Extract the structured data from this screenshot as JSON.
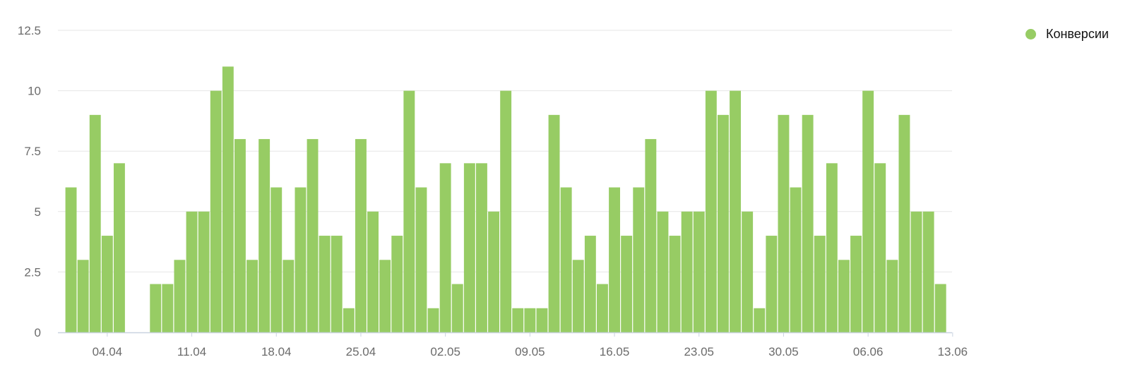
{
  "chart_data": {
    "type": "bar",
    "ylim": [
      0,
      12.5
    ],
    "y_ticks": [
      "0",
      "2.5",
      "5",
      "7.5",
      "10",
      "12.5"
    ],
    "x_ticks": [
      "04.04",
      "11.04",
      "18.04",
      "25.04",
      "02.05",
      "09.05",
      "16.05",
      "23.05",
      "30.05",
      "06.06",
      "13.06"
    ],
    "series": [
      {
        "name": "Конверсии",
        "color": "#97cc64",
        "values": [
          6,
          3,
          9,
          4,
          7,
          0,
          0,
          2,
          2,
          3,
          5,
          5,
          10,
          11,
          8,
          3,
          8,
          6,
          3,
          6,
          8,
          4,
          4,
          1,
          8,
          5,
          3,
          4,
          10,
          6,
          1,
          7,
          2,
          7,
          7,
          5,
          10,
          1,
          1,
          1,
          9,
          6,
          3,
          4,
          2,
          6,
          4,
          6,
          8,
          5,
          4,
          5,
          5,
          10,
          9,
          10,
          5,
          1,
          4,
          9,
          6,
          9,
          4,
          7,
          3,
          4,
          10,
          7,
          3,
          9,
          5,
          5,
          2
        ]
      }
    ],
    "grid": true,
    "legend_position": "top-right"
  },
  "legend": {
    "label": "Конверсии",
    "color": "#97cc64"
  }
}
